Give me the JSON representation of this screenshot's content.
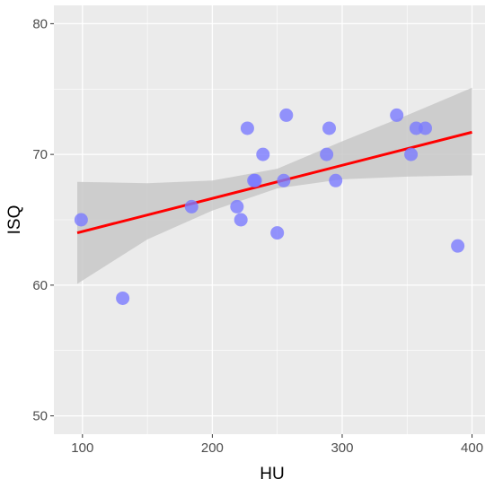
{
  "chart_data": {
    "type": "scatter",
    "title": "",
    "xlabel": "HU",
    "ylabel": "ISQ",
    "xlim": [
      78,
      410
    ],
    "ylim": [
      48.6,
      81.4
    ],
    "xticks": [
      100,
      200,
      300,
      400
    ],
    "yticks": [
      50,
      60,
      70,
      80
    ],
    "x_minor": [
      150,
      250,
      350
    ],
    "y_minor": [
      55,
      65,
      75
    ],
    "grid": true,
    "legend": "none",
    "points": [
      {
        "x": 99,
        "y": 65
      },
      {
        "x": 131,
        "y": 59
      },
      {
        "x": 184,
        "y": 66
      },
      {
        "x": 219,
        "y": 66
      },
      {
        "x": 222,
        "y": 65
      },
      {
        "x": 227,
        "y": 72
      },
      {
        "x": 232,
        "y": 68
      },
      {
        "x": 233,
        "y": 68
      },
      {
        "x": 239,
        "y": 70
      },
      {
        "x": 250,
        "y": 64
      },
      {
        "x": 255,
        "y": 68
      },
      {
        "x": 257,
        "y": 73
      },
      {
        "x": 288,
        "y": 70
      },
      {
        "x": 290,
        "y": 72
      },
      {
        "x": 295,
        "y": 68
      },
      {
        "x": 342,
        "y": 73
      },
      {
        "x": 353,
        "y": 70
      },
      {
        "x": 357,
        "y": 72
      },
      {
        "x": 364,
        "y": 72
      },
      {
        "x": 389,
        "y": 63
      }
    ],
    "regression": {
      "x": [
        96,
        400
      ],
      "y": [
        64.0,
        71.7
      ]
    },
    "confidence_band": {
      "x": [
        96,
        150,
        200,
        250,
        300,
        350,
        400
      ],
      "lower": [
        60.1,
        63.5,
        65.7,
        67.4,
        68.1,
        68.3,
        68.4
      ],
      "upper": [
        67.9,
        67.8,
        68.0,
        68.9,
        71.0,
        73.0,
        75.1
      ]
    },
    "colors": {
      "point": "#7a7aff",
      "line": "#ff0000",
      "band": "#c8c8c8",
      "panel": "#ebebeb",
      "grid": "#ffffff"
    }
  }
}
